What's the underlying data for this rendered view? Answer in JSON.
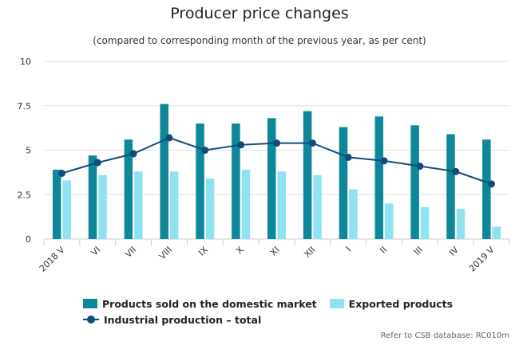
{
  "title": "Producer price changes",
  "subtitle": "(compared to corresponding month of the previous year, as per cent)",
  "credit": "Refer to CSB database: RC010m",
  "colors": {
    "domestic": "#0e8898",
    "exported": "#8fe3f0",
    "industrial": "#0d4c7c",
    "grid": "#e1e1e1"
  },
  "chart_data": {
    "type": "bar",
    "categories": [
      "2018 V",
      "VI",
      "VII",
      "VIII",
      "IX",
      "X",
      "XI",
      "XII",
      "I",
      "II",
      "III",
      "IV",
      "2019 V"
    ],
    "ylim": [
      0,
      10
    ],
    "yticks": [
      "0",
      "2.5",
      "5",
      "7.5",
      "10"
    ],
    "grid": true,
    "legend_position": "bottom",
    "series": [
      {
        "name": "Products sold on the domestic market",
        "kind": "bar",
        "values": [
          3.9,
          4.7,
          5.6,
          7.6,
          6.5,
          6.5,
          6.8,
          7.2,
          6.3,
          6.9,
          6.4,
          5.9,
          5.6
        ]
      },
      {
        "name": "Exported products",
        "kind": "bar",
        "values": [
          3.3,
          3.6,
          3.8,
          3.8,
          3.4,
          3.9,
          3.8,
          3.6,
          2.8,
          2.0,
          1.8,
          1.7,
          0.7
        ]
      },
      {
        "name": "Industrial production – total",
        "kind": "line",
        "values": [
          3.7,
          4.3,
          4.8,
          5.7,
          5.0,
          5.3,
          5.4,
          5.4,
          4.6,
          4.4,
          4.1,
          3.8,
          3.1
        ]
      }
    ]
  }
}
